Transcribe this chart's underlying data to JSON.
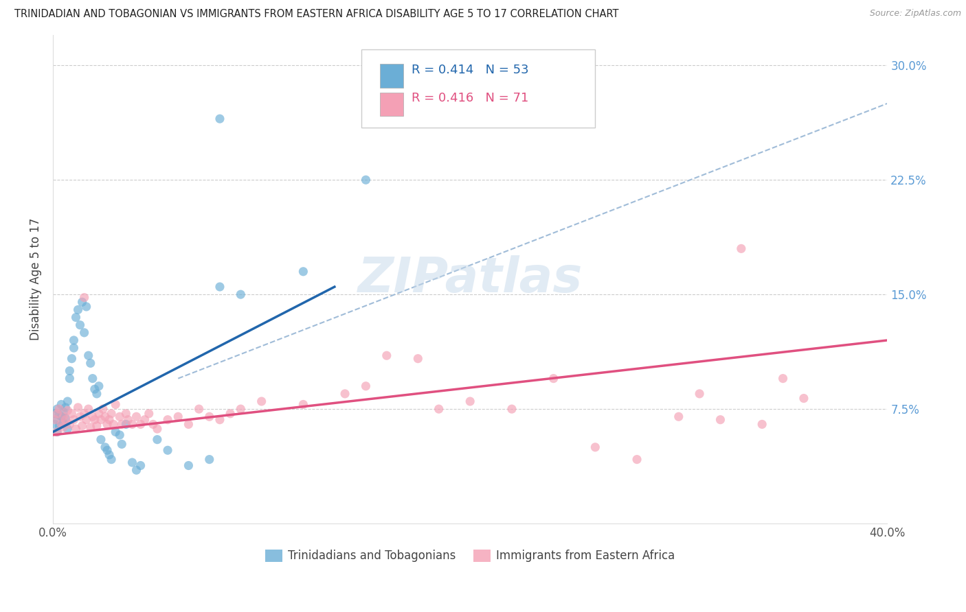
{
  "title": "TRINIDADIAN AND TOBAGONIAN VS IMMIGRANTS FROM EASTERN AFRICA DISABILITY AGE 5 TO 17 CORRELATION CHART",
  "source": "Source: ZipAtlas.com",
  "ylabel": "Disability Age 5 to 17",
  "xmin": 0.0,
  "xmax": 0.4,
  "ymin": 0.0,
  "ymax": 0.32,
  "ytick_vals": [
    0.0,
    0.075,
    0.15,
    0.225,
    0.3
  ],
  "ytick_labels": [
    "",
    "7.5%",
    "15.0%",
    "22.5%",
    "30.0%"
  ],
  "xtick_vals": [
    0.0,
    0.1,
    0.2,
    0.3,
    0.4
  ],
  "xtick_labels": [
    "0.0%",
    "",
    "",
    "",
    "40.0%"
  ],
  "color_blue": "#6baed6",
  "color_pink": "#f4a0b5",
  "color_blue_line": "#2166ac",
  "color_pink_line": "#e05080",
  "color_dashed": "#a0bcd8",
  "watermark": "ZIPatlas",
  "blue_line_x": [
    0.0,
    0.135
  ],
  "blue_line_y": [
    0.06,
    0.155
  ],
  "pink_line_x": [
    0.0,
    0.4
  ],
  "pink_line_y": [
    0.058,
    0.12
  ],
  "dashed_line_x": [
    0.06,
    0.4
  ],
  "dashed_line_y": [
    0.095,
    0.275
  ],
  "blue_scatter_x": [
    0.001,
    0.001,
    0.002,
    0.002,
    0.002,
    0.003,
    0.003,
    0.004,
    0.004,
    0.005,
    0.005,
    0.006,
    0.006,
    0.007,
    0.007,
    0.008,
    0.008,
    0.009,
    0.01,
    0.01,
    0.011,
    0.012,
    0.013,
    0.014,
    0.015,
    0.016,
    0.017,
    0.018,
    0.019,
    0.02,
    0.021,
    0.022,
    0.023,
    0.025,
    0.026,
    0.027,
    0.028,
    0.03,
    0.032,
    0.033,
    0.035,
    0.038,
    0.04,
    0.042,
    0.05,
    0.055,
    0.065,
    0.075,
    0.08,
    0.09,
    0.12,
    0.15,
    0.08
  ],
  "blue_scatter_y": [
    0.065,
    0.072,
    0.068,
    0.075,
    0.06,
    0.071,
    0.064,
    0.07,
    0.078,
    0.066,
    0.073,
    0.069,
    0.076,
    0.062,
    0.08,
    0.1,
    0.095,
    0.108,
    0.12,
    0.115,
    0.135,
    0.14,
    0.13,
    0.145,
    0.125,
    0.142,
    0.11,
    0.105,
    0.095,
    0.088,
    0.085,
    0.09,
    0.055,
    0.05,
    0.048,
    0.045,
    0.042,
    0.06,
    0.058,
    0.052,
    0.065,
    0.04,
    0.035,
    0.038,
    0.055,
    0.048,
    0.038,
    0.042,
    0.155,
    0.15,
    0.165,
    0.225,
    0.265
  ],
  "pink_scatter_x": [
    0.001,
    0.002,
    0.002,
    0.003,
    0.004,
    0.005,
    0.005,
    0.006,
    0.007,
    0.008,
    0.009,
    0.01,
    0.011,
    0.012,
    0.013,
    0.014,
    0.015,
    0.015,
    0.016,
    0.017,
    0.018,
    0.019,
    0.02,
    0.021,
    0.022,
    0.023,
    0.024,
    0.025,
    0.026,
    0.027,
    0.028,
    0.029,
    0.03,
    0.032,
    0.033,
    0.035,
    0.036,
    0.038,
    0.04,
    0.042,
    0.044,
    0.046,
    0.048,
    0.05,
    0.055,
    0.06,
    0.065,
    0.07,
    0.075,
    0.08,
    0.085,
    0.09,
    0.1,
    0.12,
    0.14,
    0.15,
    0.16,
    0.175,
    0.185,
    0.2,
    0.22,
    0.24,
    0.26,
    0.28,
    0.3,
    0.31,
    0.32,
    0.33,
    0.34,
    0.35,
    0.36
  ],
  "pink_scatter_y": [
    0.068,
    0.072,
    0.06,
    0.075,
    0.065,
    0.063,
    0.07,
    0.068,
    0.074,
    0.065,
    0.072,
    0.068,
    0.062,
    0.076,
    0.07,
    0.064,
    0.148,
    0.072,
    0.068,
    0.075,
    0.063,
    0.07,
    0.068,
    0.064,
    0.072,
    0.068,
    0.075,
    0.07,
    0.065,
    0.068,
    0.072,
    0.065,
    0.078,
    0.07,
    0.065,
    0.072,
    0.068,
    0.065,
    0.07,
    0.065,
    0.068,
    0.072,
    0.065,
    0.062,
    0.068,
    0.07,
    0.065,
    0.075,
    0.07,
    0.068,
    0.072,
    0.075,
    0.08,
    0.078,
    0.085,
    0.09,
    0.11,
    0.108,
    0.075,
    0.08,
    0.075,
    0.095,
    0.05,
    0.042,
    0.07,
    0.085,
    0.068,
    0.18,
    0.065,
    0.095,
    0.082
  ]
}
